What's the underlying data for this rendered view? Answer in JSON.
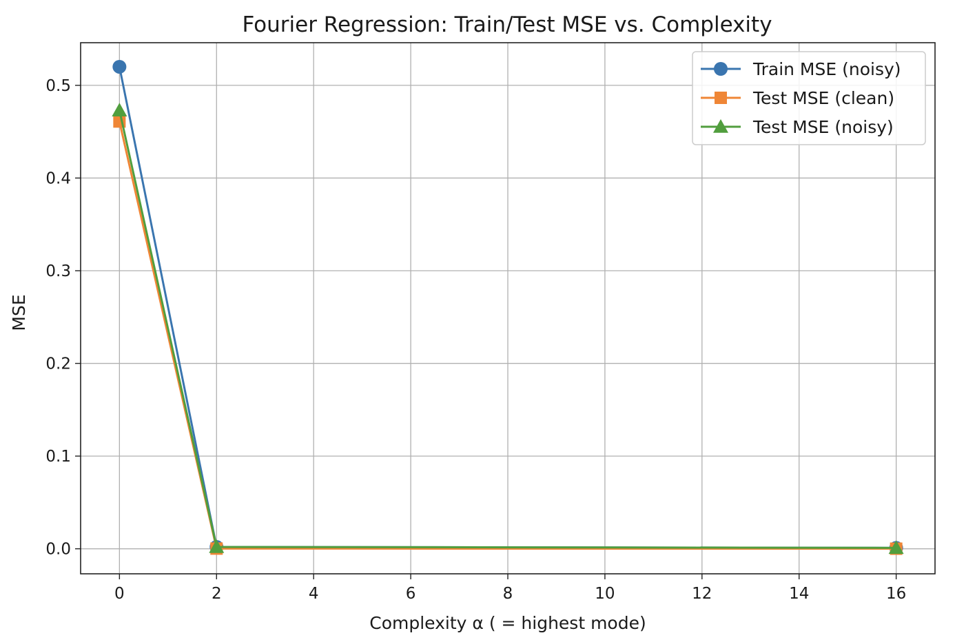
{
  "chart_data": {
    "type": "line",
    "title": "Fourier Regression: Train/Test MSE vs. Complexity",
    "xlabel": "Complexity α ( = highest mode)",
    "ylabel": "MSE",
    "xlim": [
      -0.8,
      16.8
    ],
    "ylim": [
      -0.027,
      0.546
    ],
    "xticks": [
      0,
      2,
      4,
      6,
      8,
      10,
      12,
      14,
      16
    ],
    "xtick_labels": [
      "0",
      "2",
      "4",
      "6",
      "8",
      "10",
      "12",
      "14",
      "16"
    ],
    "yticks": [
      0.0,
      0.1,
      0.2,
      0.3,
      0.4,
      0.5
    ],
    "ytick_labels": [
      "0.0",
      "0.1",
      "0.2",
      "0.3",
      "0.4",
      "0.5"
    ],
    "grid": true,
    "legend_position": "top-right",
    "x": [
      0,
      2,
      16
    ],
    "series": [
      {
        "name": "Train MSE (noisy)",
        "values": [
          0.52,
          0.002,
          0.001
        ],
        "color": "#3a75af",
        "marker": "circle"
      },
      {
        "name": "Test MSE (clean)",
        "values": [
          0.461,
          0.0002,
          0.0001
        ],
        "color": "#ef8636",
        "marker": "square"
      },
      {
        "name": "Test MSE (noisy)",
        "values": [
          0.473,
          0.002,
          0.001
        ],
        "color": "#519e3e",
        "marker": "triangle"
      }
    ]
  }
}
